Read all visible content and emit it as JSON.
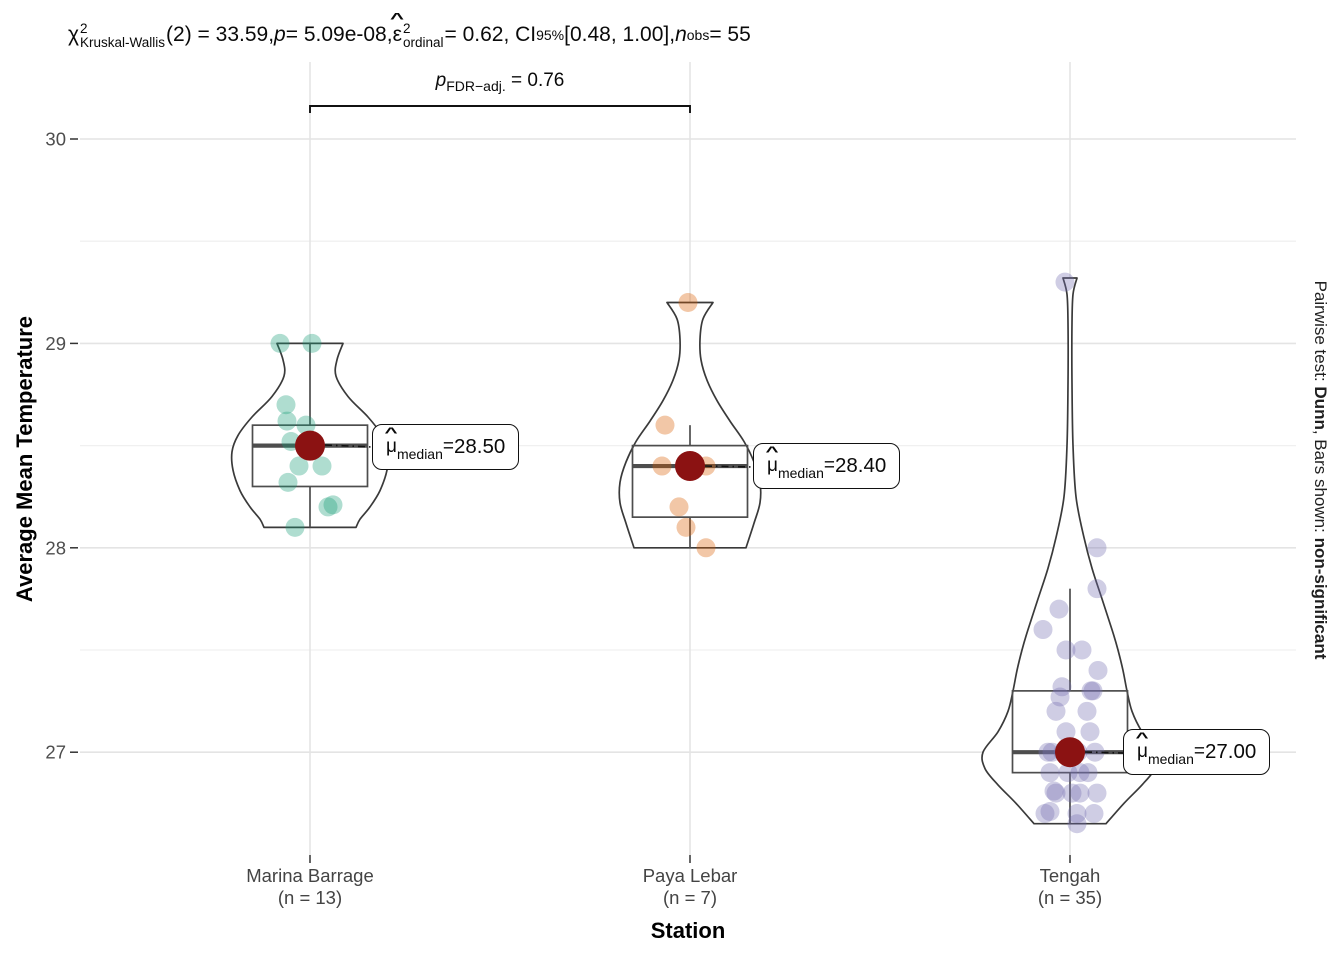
{
  "stats_header": {
    "chi": "χ",
    "chi_sup": "2",
    "chi_sub": "Kruskal-Wallis",
    "seg1": "(2) = 33.59, ",
    "p": "p",
    "seg2": " = 5.09e-08, ",
    "eps": "ε",
    "hat": "^",
    "eps_sup": "2",
    "eps_sub": "ordinal",
    "seg3": " = 0.62, CI",
    "ci_sub": "95%",
    "seg4": " [0.48, 1.00], ",
    "n": "n",
    "n_sub": "obs",
    "seg5": " = 55"
  },
  "pairwise_bracket": {
    "p": "p",
    "p_sub": "FDR−adj.",
    "p_val": " = 0.76",
    "from_group": "Marina Barrage",
    "to_group": "Paya Lebar"
  },
  "caption": {
    "part1": "Pairwise test: ",
    "test": "Dunn",
    "part2": ", Bars shown: ",
    "emph": "non-significant"
  },
  "axes": {
    "x_title": "Station",
    "y_title": "Average Mean Temperature",
    "y_ticks": [
      30,
      29,
      28,
      27
    ],
    "y_minor_ticks": [
      29.5,
      28.5,
      27.5
    ]
  },
  "median_label_parts": {
    "mu": "μ",
    "hat": "^",
    "sub": "median",
    "eq": " = "
  },
  "chart_data": {
    "type": "violin-box-scatter",
    "title": "χ²Kruskal-Wallis(2) = 33.59, p = 5.09e-08, ε²ordinal = 0.62, CI95% [0.48, 1.00], nobs = 55",
    "xlabel": "Station",
    "ylabel": "Average Mean Temperature",
    "ylim": [
      26.5,
      30.38
    ],
    "grid": true,
    "median_dot_color": "#8b1212",
    "point_opacity": 0.35,
    "groups": [
      {
        "name": "Marina Barrage",
        "n": 13,
        "n_label": "(n = 13)",
        "point_color": "#1b9e77",
        "median": 28.5,
        "median_label": "28.50",
        "box": {
          "q1": 28.3,
          "q3": 28.6,
          "whisker_low": 28.1,
          "whisker_high": 29.0
        },
        "points": [
          [
            -30,
            29.0
          ],
          [
            2,
            29.0
          ],
          [
            -24,
            28.7
          ],
          [
            -23,
            28.62
          ],
          [
            -4,
            28.6
          ],
          [
            -19,
            28.52
          ],
          [
            0,
            28.5
          ],
          [
            12,
            28.4
          ],
          [
            -11,
            28.4
          ],
          [
            -22,
            28.32
          ],
          [
            18,
            28.2
          ],
          [
            23,
            28.21
          ],
          [
            -15,
            28.1
          ]
        ],
        "violin": [
          [
            29.0,
            33
          ],
          [
            28.92,
            27
          ],
          [
            28.84,
            26
          ],
          [
            28.74,
            38
          ],
          [
            28.64,
            58
          ],
          [
            28.55,
            72
          ],
          [
            28.47,
            78
          ],
          [
            28.38,
            77
          ],
          [
            28.28,
            70
          ],
          [
            28.2,
            60
          ],
          [
            28.14,
            50
          ],
          [
            28.1,
            46
          ]
        ]
      },
      {
        "name": "Paya Lebar",
        "n": 7,
        "n_label": "(n = 7)",
        "point_color": "#d95f02",
        "median": 28.4,
        "median_label": "28.40",
        "box": {
          "q1": 28.15,
          "q3": 28.5,
          "whisker_low": 28.0,
          "whisker_high": 28.6
        },
        "points": [
          [
            -2,
            29.2
          ],
          [
            -25,
            28.6
          ],
          [
            -28,
            28.4
          ],
          [
            16,
            28.4
          ],
          [
            -11,
            28.2
          ],
          [
            -4,
            28.1
          ],
          [
            16,
            28.0
          ]
        ],
        "violin": [
          [
            29.2,
            23
          ],
          [
            29.12,
            13
          ],
          [
            29.02,
            10
          ],
          [
            28.92,
            11
          ],
          [
            28.82,
            17
          ],
          [
            28.72,
            27
          ],
          [
            28.62,
            40
          ],
          [
            28.52,
            54
          ],
          [
            28.42,
            64
          ],
          [
            28.32,
            70
          ],
          [
            28.22,
            70
          ],
          [
            28.12,
            64
          ],
          [
            28.0,
            56
          ]
        ]
      },
      {
        "name": "Tengah",
        "n": 35,
        "n_label": "(n = 35)",
        "point_color": "#7570b3",
        "median": 27.0,
        "median_label": "27.00",
        "box": {
          "q1": 26.9,
          "q3": 27.3,
          "whisker_low": 26.65,
          "whisker_high": 27.8
        },
        "points": [
          [
            -5,
            29.3
          ],
          [
            27,
            28.0
          ],
          [
            27,
            27.8
          ],
          [
            -11,
            27.7
          ],
          [
            -27,
            27.6
          ],
          [
            -4,
            27.5
          ],
          [
            12,
            27.5
          ],
          [
            28,
            27.4
          ],
          [
            -8,
            27.32
          ],
          [
            23,
            27.3
          ],
          [
            -10,
            27.27
          ],
          [
            21,
            27.3
          ],
          [
            17,
            27.2
          ],
          [
            -14,
            27.2
          ],
          [
            20,
            27.1
          ],
          [
            -4,
            27.1
          ],
          [
            -7,
            27.0
          ],
          [
            -18,
            27.0
          ],
          [
            25,
            27.0
          ],
          [
            -22,
            27.0
          ],
          [
            8,
            27.0
          ],
          [
            -20,
            26.9
          ],
          [
            10,
            26.9
          ],
          [
            -2,
            26.9
          ],
          [
            18,
            26.9
          ],
          [
            -14,
            26.8
          ],
          [
            10,
            26.8
          ],
          [
            27,
            26.8
          ],
          [
            -16,
            26.81
          ],
          [
            2,
            26.8
          ],
          [
            -25,
            26.7
          ],
          [
            7,
            26.7
          ],
          [
            -20,
            26.71
          ],
          [
            24,
            26.7
          ],
          [
            7,
            26.65
          ]
        ],
        "violin": [
          [
            29.32,
            7
          ],
          [
            29.24,
            3
          ],
          [
            29.1,
            2
          ],
          [
            28.8,
            2
          ],
          [
            28.5,
            3
          ],
          [
            28.25,
            6
          ],
          [
            28.05,
            14
          ],
          [
            27.9,
            22
          ],
          [
            27.75,
            32
          ],
          [
            27.6,
            42
          ],
          [
            27.5,
            48
          ],
          [
            27.4,
            53
          ],
          [
            27.3,
            57
          ],
          [
            27.2,
            62
          ],
          [
            27.1,
            72
          ],
          [
            27.0,
            87
          ],
          [
            26.92,
            85
          ],
          [
            26.84,
            72
          ],
          [
            26.75,
            54
          ],
          [
            26.65,
            36
          ]
        ]
      }
    ]
  }
}
